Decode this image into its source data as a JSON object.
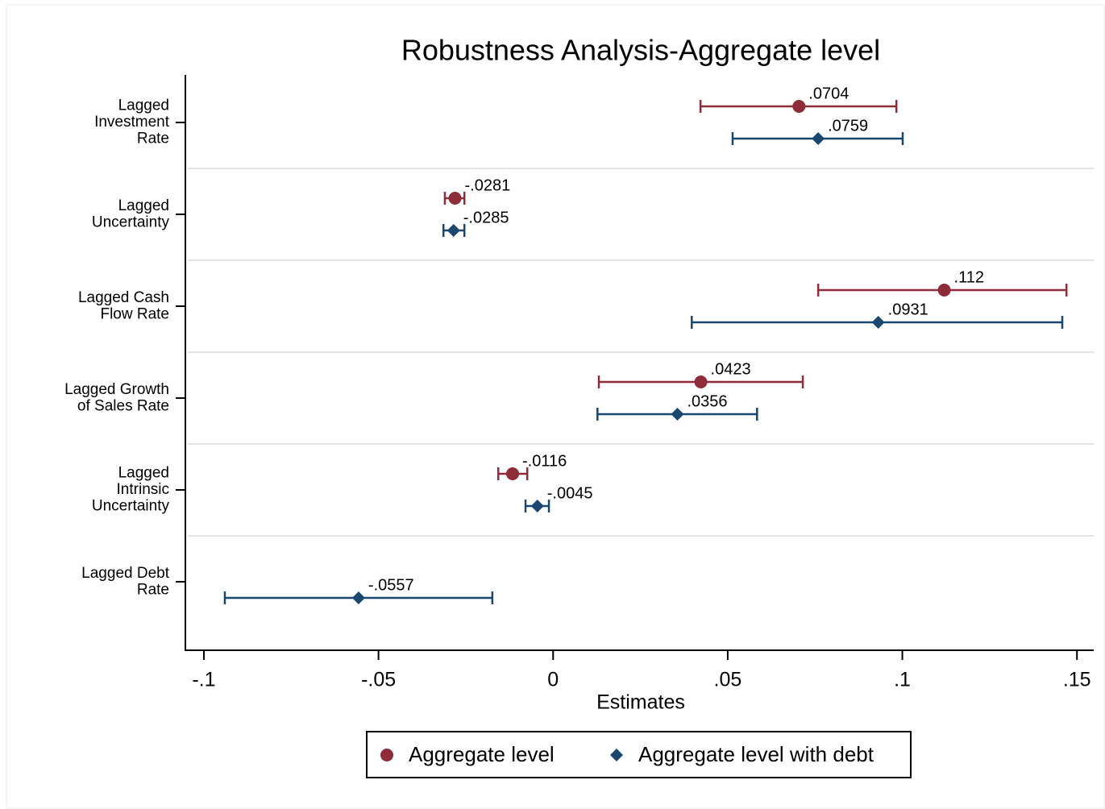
{
  "chart_data": {
    "type": "coefplot",
    "title": "Robustness Analysis-Aggregate level",
    "x_label": "Estimates",
    "categories": [
      [
        "Lagged",
        "Investment",
        "Rate"
      ],
      [
        "Lagged",
        "Uncertainty"
      ],
      [
        "Lagged Cash",
        "Flow Rate"
      ],
      [
        "Lagged Growth",
        "of Sales Rate"
      ],
      [
        "Lagged",
        "Intrinsic",
        "Uncertainty"
      ],
      [
        "Lagged Debt",
        "Rate"
      ]
    ],
    "series": [
      {
        "name": "Aggregate level",
        "color": "#8f2c3a",
        "marker": "circle",
        "values": [
          0.0704,
          -0.0281,
          0.112,
          0.0423,
          -0.0116,
          null
        ],
        "value_labels": [
          ".0704",
          "-.0281",
          ".112",
          ".0423",
          "-.0116",
          null
        ],
        "lower": [
          0.0422,
          -0.031,
          0.0759,
          0.0131,
          -0.0157,
          null
        ],
        "upper": [
          0.0983,
          -0.0254,
          0.147,
          0.0715,
          -0.0074,
          null
        ]
      },
      {
        "name": "Aggregate level with debt",
        "color": "#1a476f",
        "marker": "diamond",
        "values": [
          0.0759,
          -0.0285,
          0.0931,
          0.0356,
          -0.0045,
          -0.0557
        ],
        "value_labels": [
          ".0759",
          "-.0285",
          ".0931",
          ".0356",
          "-.0045",
          "-.0557"
        ],
        "lower": [
          0.0514,
          -0.0314,
          0.0397,
          0.0127,
          -0.0079,
          -0.094
        ],
        "upper": [
          0.1001,
          -0.0254,
          0.1458,
          0.0584,
          -0.0012,
          -0.0174
        ]
      }
    ],
    "xlim": [
      -0.1053,
      0.1548
    ],
    "xticks": [
      {
        "value": -0.1,
        "label": "-.1"
      },
      {
        "value": -0.05,
        "label": "-.05"
      },
      0,
      {
        "value": 0.05,
        "label": ".05"
      },
      {
        "value": 0.1,
        "label": ".1"
      },
      {
        "value": 0.15,
        "label": ".15"
      }
    ],
    "legend_position": "bottom"
  }
}
